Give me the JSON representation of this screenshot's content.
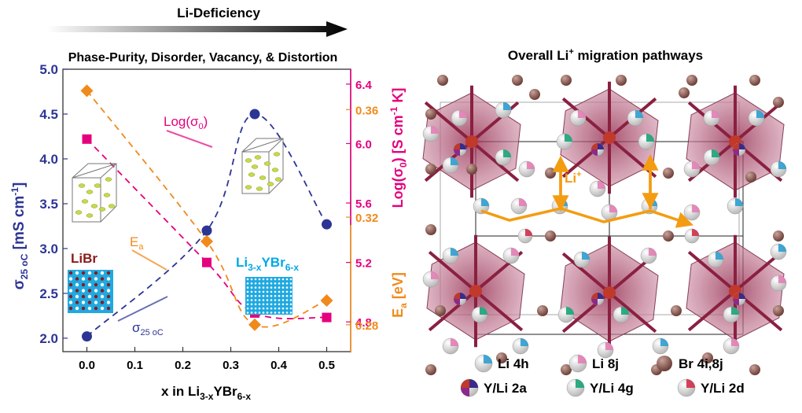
{
  "header": {
    "arrow_label": "Li-Deficiency",
    "subtitle": "Phase-Purity, Disorder, Vacancy, & Distortion"
  },
  "right_panel": {
    "title": "Overall Li",
    "title_sup": "+",
    "title_rest": " migration pathways",
    "li_label": "Li",
    "li_sup": "+",
    "legend": [
      {
        "label": "Li 4h",
        "icon": "sphere-blue-cap"
      },
      {
        "label": "Li 8j",
        "icon": "sphere-pink-cap"
      },
      {
        "label": "Br 4i,8j",
        "icon": "sphere-brown"
      },
      {
        "label": "Y/Li 2a",
        "icon": "sphere-y-li-2a"
      },
      {
        "label": "Y/Li 4g",
        "icon": "sphere-y-li-4g"
      },
      {
        "label": "Y/Li 2d",
        "icon": "sphere-y-li-2d"
      }
    ],
    "colors": {
      "octahedron": "#a8506a",
      "br": "#8c5a52",
      "li_blue": "#2f9fd0",
      "li_pink": "#e27fb5",
      "path": "#f39c12"
    }
  },
  "annotations": {
    "log_sigma": "Log(σ",
    "log_sigma_sub": "0",
    "log_sigma_close": ")",
    "ea": "E",
    "ea_sub": "a",
    "sigma": "σ",
    "sigma_sub": "25 oC",
    "libr": "LiBr",
    "li3x_a": "Li",
    "li3x_b": "3-x",
    "li3x_c": "YBr",
    "li3x_d": "6-x"
  },
  "chart_data": {
    "type": "scatter",
    "xlabel_main": "x in Li",
    "xlabel_sub1": "3-x",
    "xlabel_mid": "YBr",
    "xlabel_sub2": "6-x",
    "ylabel_left_main": "σ",
    "ylabel_left_sub": "25 oC",
    "ylabel_left_unit": "[mS cm",
    "ylabel_left_sup": "-1",
    "ylabel_left_close": "]",
    "ylabel_right_top": "Log(σ0) [S cm-1 K]",
    "ylabel_right_bottom": "Ea [eV]",
    "xlim": [
      -0.05,
      0.55
    ],
    "ylim_left": [
      1.85,
      5.0
    ],
    "ylim_right_top": [
      4.6,
      6.5
    ],
    "ylim_right_bottom": [
      0.27,
      0.375
    ],
    "xticks": [
      "0.0",
      "0.1",
      "0.2",
      "0.3",
      "0.4",
      "0.5"
    ],
    "yticks_left": [
      "2.0",
      "2.5",
      "3.0",
      "3.5",
      "4.0",
      "4.5",
      "5.0"
    ],
    "yticks_right_top": [
      "4.8",
      "5.2",
      "5.6",
      "6.0",
      "6.4"
    ],
    "yticks_right_bottom": [
      "0.28",
      "0.32",
      "0.36"
    ],
    "series": [
      {
        "name": "σ25 oC",
        "axis": "left",
        "color": "#2d3594",
        "marker": "circle",
        "x": [
          0.0,
          0.25,
          0.35,
          0.5
        ],
        "y": [
          2.02,
          3.2,
          4.5,
          3.27
        ]
      },
      {
        "name": "Log(σ0)",
        "axis": "right_top",
        "color": "#e5007e",
        "marker": "square",
        "x": [
          0.0,
          0.25,
          0.35,
          0.5
        ],
        "y": [
          6.03,
          5.2,
          4.86,
          4.83
        ]
      },
      {
        "name": "Ea",
        "axis": "right_bottom",
        "color": "#f08a1c",
        "marker": "diamond",
        "x": [
          0.0,
          0.25,
          0.35,
          0.5
        ],
        "y": [
          0.367,
          0.311,
          0.28,
          0.289
        ]
      }
    ]
  }
}
